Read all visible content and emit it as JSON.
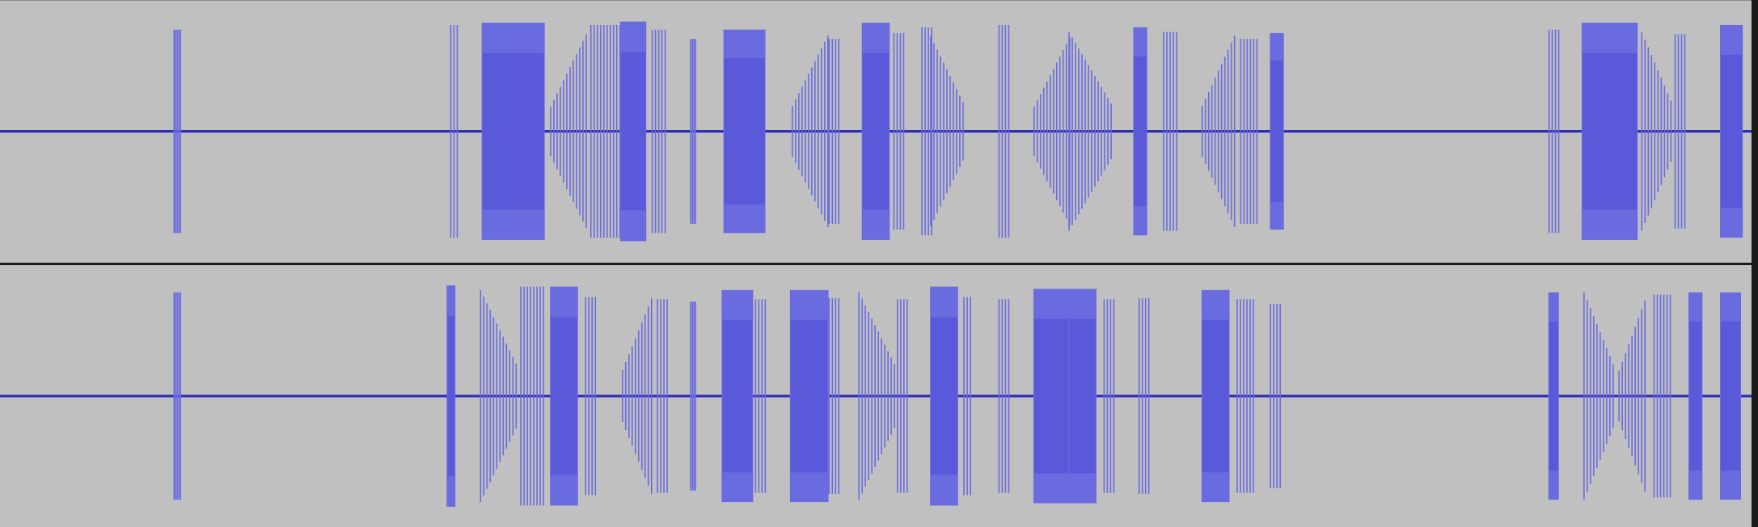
{
  "view": {
    "background_color": "#c0c0c0",
    "wave_peak_color": "#6b6be0",
    "wave_rms_color": "#3a3acc",
    "baseline_color": "#2a2ab8",
    "divider_color": "#1a1a1a"
  },
  "tracks": [
    {
      "id": "channel-left",
      "bursts": [
        {
          "t": 0.099,
          "w": 0.004,
          "a": 0.88,
          "mode": "click"
        },
        {
          "t": 0.257,
          "w": 0.005,
          "a": 0.92,
          "mode": "comb"
        },
        {
          "t": 0.275,
          "w": 0.036,
          "a": 0.94,
          "mode": "block"
        },
        {
          "t": 0.314,
          "w": 0.021,
          "a": 0.86,
          "mode": "fade-in"
        },
        {
          "t": 0.337,
          "w": 0.018,
          "a": 0.92,
          "mode": "comb"
        },
        {
          "t": 0.354,
          "w": 0.015,
          "a": 0.95,
          "mode": "block"
        },
        {
          "t": 0.372,
          "w": 0.008,
          "a": 0.88,
          "mode": "comb"
        },
        {
          "t": 0.394,
          "w": 0.003,
          "a": 0.8,
          "mode": "click"
        },
        {
          "t": 0.413,
          "w": 0.024,
          "a": 0.88,
          "mode": "block"
        },
        {
          "t": 0.452,
          "w": 0.022,
          "a": 0.88,
          "mode": "fade-in"
        },
        {
          "t": 0.473,
          "w": 0.006,
          "a": 0.8,
          "mode": "comb"
        },
        {
          "t": 0.492,
          "w": 0.016,
          "a": 0.94,
          "mode": "block"
        },
        {
          "t": 0.51,
          "w": 0.006,
          "a": 0.85,
          "mode": "comb"
        },
        {
          "t": 0.526,
          "w": 0.006,
          "a": 0.9,
          "mode": "comb"
        },
        {
          "t": 0.531,
          "w": 0.02,
          "a": 0.82,
          "mode": "fade-out"
        },
        {
          "t": 0.57,
          "w": 0.006,
          "a": 0.92,
          "mode": "comb"
        },
        {
          "t": 0.59,
          "w": 0.022,
          "a": 0.86,
          "mode": "fade-in"
        },
        {
          "t": 0.61,
          "w": 0.025,
          "a": 0.86,
          "mode": "fade-out"
        },
        {
          "t": 0.647,
          "w": 0.008,
          "a": 0.9,
          "mode": "block"
        },
        {
          "t": 0.664,
          "w": 0.009,
          "a": 0.86,
          "mode": "comb"
        },
        {
          "t": 0.686,
          "w": 0.02,
          "a": 0.88,
          "mode": "fade-in"
        },
        {
          "t": 0.708,
          "w": 0.01,
          "a": 0.8,
          "mode": "comb"
        },
        {
          "t": 0.725,
          "w": 0.008,
          "a": 0.85,
          "mode": "block"
        },
        {
          "t": 0.884,
          "w": 0.006,
          "a": 0.88,
          "mode": "comb"
        },
        {
          "t": 0.903,
          "w": 0.032,
          "a": 0.94,
          "mode": "block"
        },
        {
          "t": 0.937,
          "w": 0.018,
          "a": 0.86,
          "mode": "fade-out"
        },
        {
          "t": 0.956,
          "w": 0.006,
          "a": 0.84,
          "mode": "comb"
        },
        {
          "t": 0.982,
          "w": 0.013,
          "a": 0.92,
          "mode": "block"
        }
      ]
    },
    {
      "id": "channel-right",
      "bursts": [
        {
          "t": 0.099,
          "w": 0.004,
          "a": 0.9,
          "mode": "click"
        },
        {
          "t": 0.255,
          "w": 0.005,
          "a": 0.96,
          "mode": "block"
        },
        {
          "t": 0.274,
          "w": 0.022,
          "a": 0.92,
          "mode": "fade-out"
        },
        {
          "t": 0.297,
          "w": 0.013,
          "a": 0.95,
          "mode": "comb"
        },
        {
          "t": 0.314,
          "w": 0.016,
          "a": 0.95,
          "mode": "block"
        },
        {
          "t": 0.334,
          "w": 0.006,
          "a": 0.86,
          "mode": "comb"
        },
        {
          "t": 0.355,
          "w": 0.018,
          "a": 0.9,
          "mode": "fade-in"
        },
        {
          "t": 0.375,
          "w": 0.006,
          "a": 0.84,
          "mode": "comb"
        },
        {
          "t": 0.394,
          "w": 0.003,
          "a": 0.82,
          "mode": "click"
        },
        {
          "t": 0.412,
          "w": 0.018,
          "a": 0.92,
          "mode": "block"
        },
        {
          "t": 0.431,
          "w": 0.006,
          "a": 0.84,
          "mode": "comb"
        },
        {
          "t": 0.451,
          "w": 0.022,
          "a": 0.92,
          "mode": "block"
        },
        {
          "t": 0.473,
          "w": 0.006,
          "a": 0.85,
          "mode": "comb"
        },
        {
          "t": 0.49,
          "w": 0.022,
          "a": 0.9,
          "mode": "fade-out"
        },
        {
          "t": 0.512,
          "w": 0.006,
          "a": 0.84,
          "mode": "comb"
        },
        {
          "t": 0.531,
          "w": 0.016,
          "a": 0.95,
          "mode": "block"
        },
        {
          "t": 0.55,
          "w": 0.005,
          "a": 0.86,
          "mode": "comb"
        },
        {
          "t": 0.57,
          "w": 0.006,
          "a": 0.84,
          "mode": "comb"
        },
        {
          "t": 0.59,
          "w": 0.022,
          "a": 0.93,
          "mode": "block"
        },
        {
          "t": 0.61,
          "w": 0.016,
          "a": 0.93,
          "mode": "block"
        },
        {
          "t": 0.63,
          "w": 0.006,
          "a": 0.84,
          "mode": "comb"
        },
        {
          "t": 0.65,
          "w": 0.006,
          "a": 0.85,
          "mode": "comb"
        },
        {
          "t": 0.686,
          "w": 0.016,
          "a": 0.92,
          "mode": "block"
        },
        {
          "t": 0.706,
          "w": 0.01,
          "a": 0.84,
          "mode": "comb"
        },
        {
          "t": 0.725,
          "w": 0.006,
          "a": 0.8,
          "mode": "comb"
        },
        {
          "t": 0.884,
          "w": 0.006,
          "a": 0.9,
          "mode": "block"
        },
        {
          "t": 0.904,
          "w": 0.018,
          "a": 0.9,
          "mode": "fade-out"
        },
        {
          "t": 0.924,
          "w": 0.016,
          "a": 0.88,
          "mode": "fade-in"
        },
        {
          "t": 0.944,
          "w": 0.011,
          "a": 0.88,
          "mode": "comb"
        },
        {
          "t": 0.964,
          "w": 0.008,
          "a": 0.9,
          "mode": "block"
        },
        {
          "t": 0.982,
          "w": 0.012,
          "a": 0.9,
          "mode": "block"
        }
      ]
    }
  ]
}
